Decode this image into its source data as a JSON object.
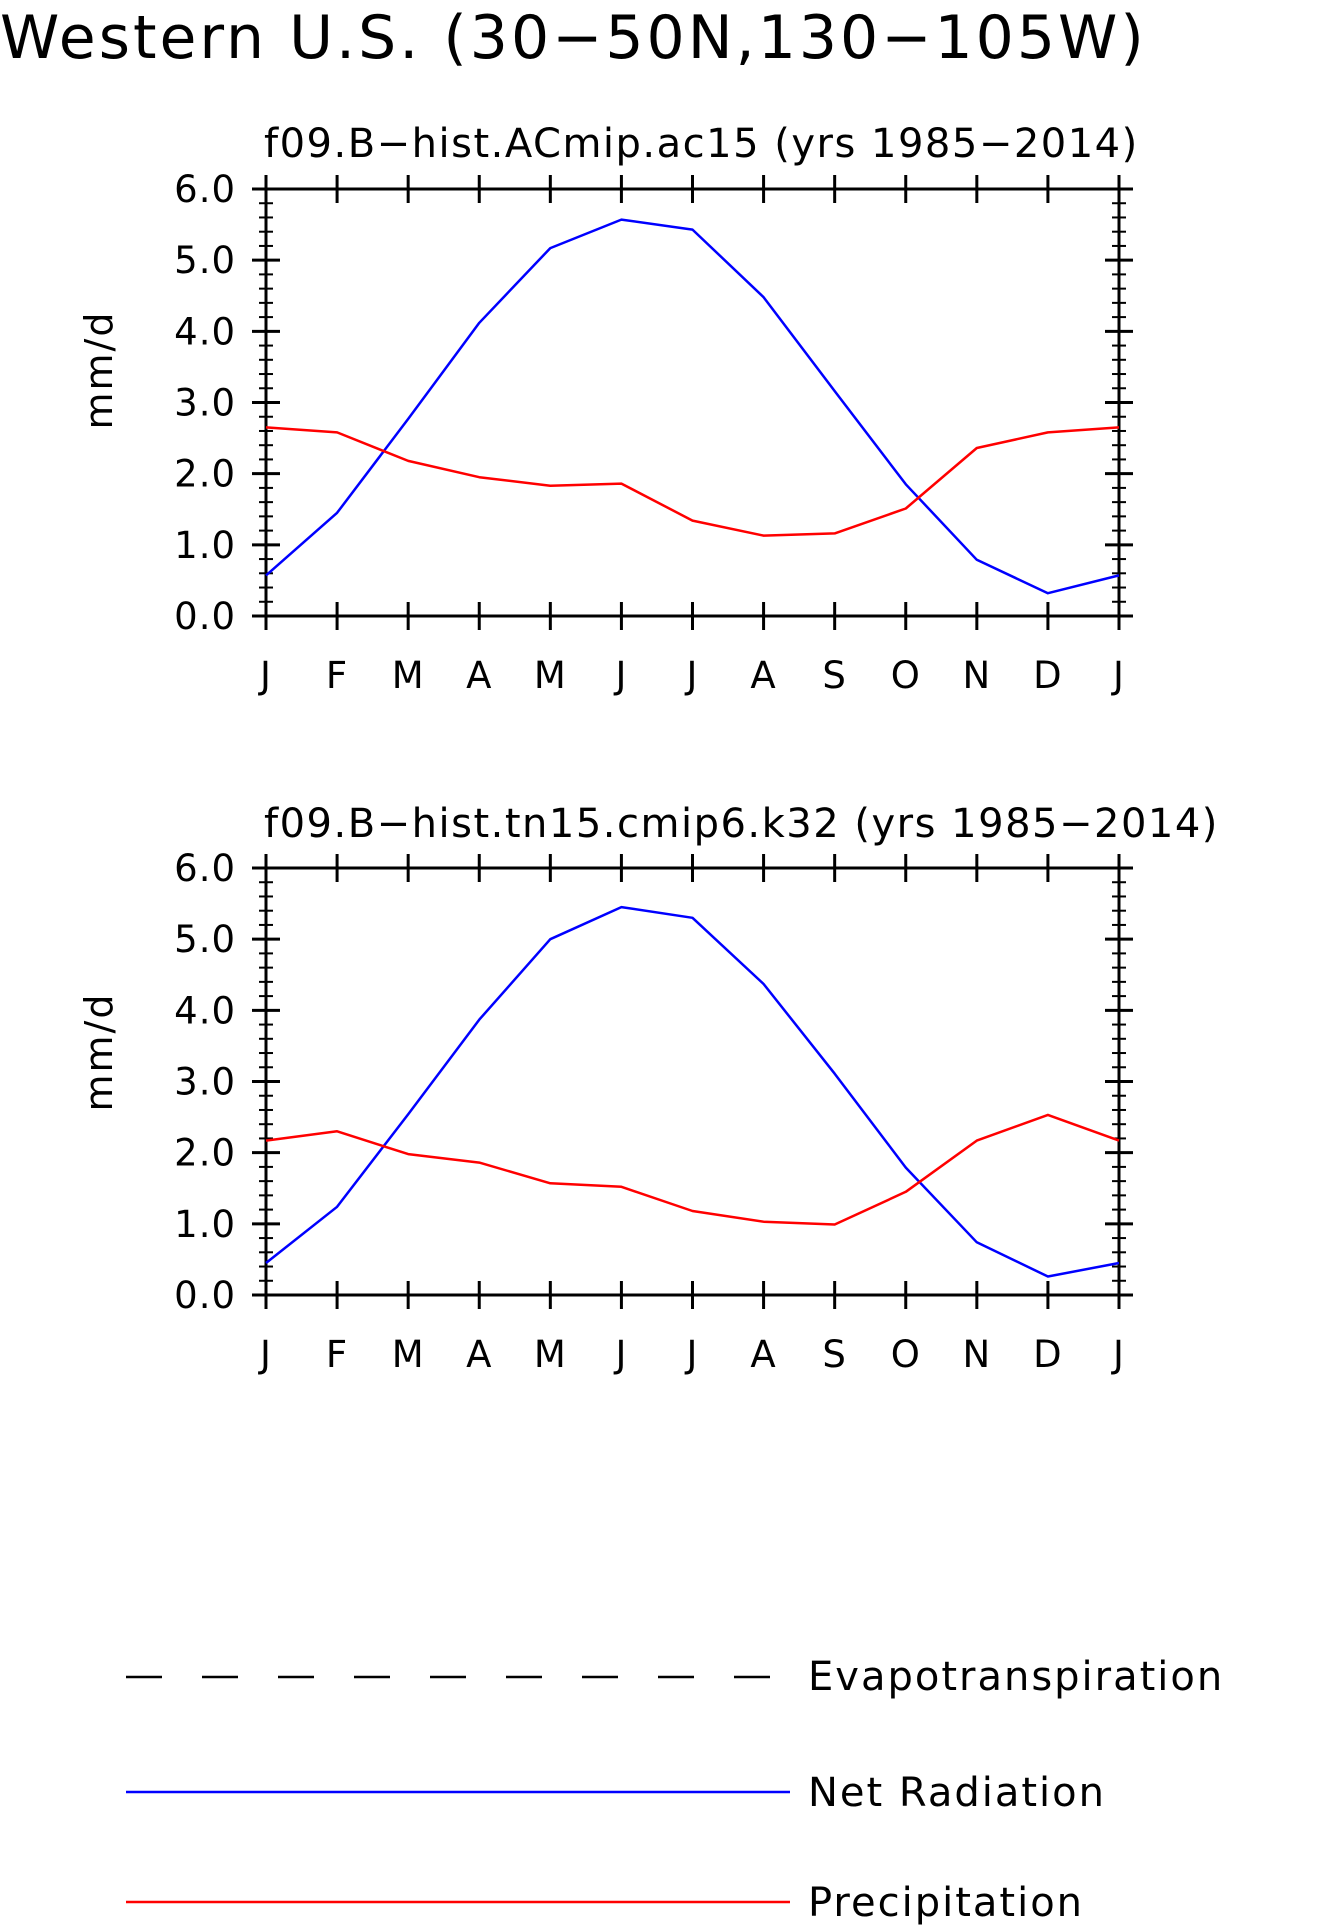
{
  "figure": {
    "title": "Western U.S. (30−50N,130−105W)"
  },
  "colors": {
    "net_radiation": "#0000ff",
    "precipitation": "#ff0000",
    "evapotranspiration": "#000000",
    "axes": "#000000",
    "background": "#ffffff"
  },
  "legend": {
    "items": [
      {
        "label": "Evapotranspiration",
        "color": "#000000",
        "style": "dashed"
      },
      {
        "label": "Net Radiation",
        "color": "#0000ff",
        "style": "solid"
      },
      {
        "label": "Precipitation",
        "color": "#ff0000",
        "style": "solid"
      }
    ]
  },
  "chart_data": [
    {
      "type": "line",
      "title": "f09.B−hist.ACmip.ac15 (yrs 1985−2014)",
      "xlabel": "",
      "ylabel": "mm/d",
      "ylim": [
        0,
        6
      ],
      "y_ticks": [
        "0.0",
        "1.0",
        "2.0",
        "3.0",
        "4.0",
        "5.0",
        "6.0"
      ],
      "categories": [
        "J",
        "F",
        "M",
        "A",
        "M",
        "J",
        "J",
        "A",
        "S",
        "O",
        "N",
        "D",
        "J"
      ],
      "series": [
        {
          "name": "Net Radiation",
          "color": "#0000ff",
          "values": [
            0.57,
            1.45,
            2.77,
            4.12,
            5.17,
            5.57,
            5.43,
            4.48,
            3.16,
            1.85,
            0.79,
            0.32,
            0.57
          ]
        },
        {
          "name": "Precipitation",
          "color": "#ff0000",
          "values": [
            2.65,
            2.58,
            2.18,
            1.95,
            1.83,
            1.86,
            1.34,
            1.13,
            1.16,
            1.51,
            2.36,
            2.58,
            2.65
          ]
        }
      ]
    },
    {
      "type": "line",
      "title": "f09.B−hist.tn15.cmip6.k32 (yrs 1985−2014)",
      "xlabel": "",
      "ylabel": "mm/d",
      "ylim": [
        0,
        6
      ],
      "y_ticks": [
        "0.0",
        "1.0",
        "2.0",
        "3.0",
        "4.0",
        "5.0",
        "6.0"
      ],
      "categories": [
        "J",
        "F",
        "M",
        "A",
        "M",
        "J",
        "J",
        "A",
        "S",
        "O",
        "N",
        "D",
        "J"
      ],
      "series": [
        {
          "name": "Net Radiation",
          "color": "#0000ff",
          "values": [
            0.45,
            1.24,
            2.54,
            3.87,
            5.0,
            5.45,
            5.3,
            4.37,
            3.11,
            1.79,
            0.74,
            0.26,
            0.45
          ]
        },
        {
          "name": "Precipitation",
          "color": "#ff0000",
          "values": [
            2.17,
            2.3,
            1.98,
            1.86,
            1.57,
            1.52,
            1.18,
            1.03,
            0.99,
            1.45,
            2.17,
            2.53,
            2.17
          ]
        }
      ]
    }
  ]
}
